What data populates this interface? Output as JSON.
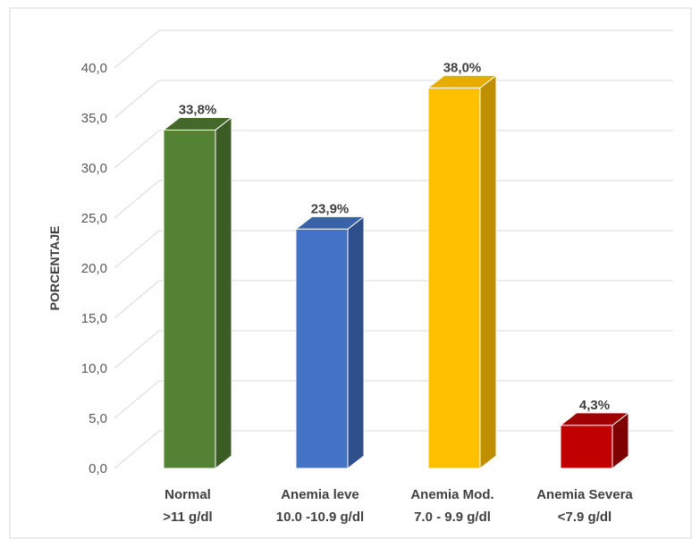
{
  "chart_data": {
    "type": "bar",
    "ylabel": "PORCENTAJE",
    "ylim": [
      0,
      40
    ],
    "yticks": [
      "0,0",
      "5,0",
      "10,0",
      "15,0",
      "20,0",
      "25,0",
      "30,0",
      "35,0",
      "40,0"
    ],
    "grid": true,
    "three_d": true,
    "categories": [
      {
        "line1": "Normal",
        "line2": ">11 g/dl"
      },
      {
        "line1": "Anemia leve",
        "line2": "10.0 -10.9 g/dl"
      },
      {
        "line1": "Anemia Mod.",
        "line2": "7.0 - 9.9 g/dl"
      },
      {
        "line1": "Anemia Severa",
        "line2": "<7.9 g/dl"
      }
    ],
    "values": [
      33.8,
      23.9,
      38.0,
      4.3
    ],
    "data_labels": [
      "33,8%",
      "23,9%",
      "38,0%",
      "4,3%"
    ],
    "colors": [
      {
        "front": "#548235",
        "side": "#3b5c25",
        "top": "#43682a"
      },
      {
        "front": "#4472c4",
        "side": "#2f4f8a",
        "top": "#3a62a8"
      },
      {
        "front": "#ffc000",
        "side": "#bf8f00",
        "top": "#e6ac00"
      },
      {
        "front": "#c00000",
        "side": "#7f0000",
        "top": "#a00000"
      }
    ]
  }
}
